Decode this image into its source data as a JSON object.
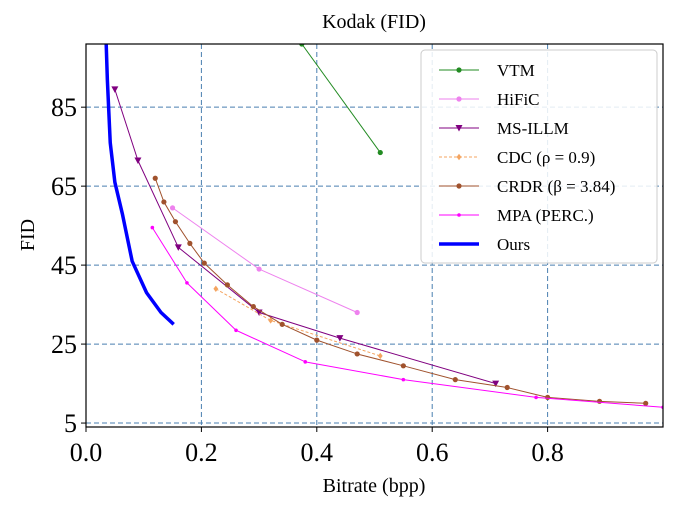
{
  "chart_data": {
    "type": "line",
    "title": "Kodak (FID)",
    "xlabel": "Bitrate (bpp)",
    "ylabel": "FID",
    "xlim": [
      0.0,
      1.0
    ],
    "ylim": [
      4,
      101
    ],
    "xticks": [
      0.0,
      0.2,
      0.4,
      0.6,
      0.8
    ],
    "xtick_labels": [
      "0.0",
      "0.2",
      "0.4",
      "0.6",
      "0.8"
    ],
    "yticks": [
      5,
      25,
      45,
      65,
      85
    ],
    "ytick_labels": [
      "5",
      "25",
      "45",
      "65",
      "85"
    ],
    "grid": true,
    "legend_position": "top-right",
    "series": [
      {
        "name": "VTM",
        "color": "#228b22",
        "marker": "circle",
        "dashed": false,
        "width": 1,
        "x": [
          0.374,
          0.51
        ],
        "y": [
          101,
          73.5
        ]
      },
      {
        "name": "HiFiC",
        "color": "#ee82ee",
        "marker": "circle",
        "dashed": false,
        "width": 1,
        "x": [
          0.15,
          0.3,
          0.47
        ],
        "y": [
          59.5,
          44,
          33
        ]
      },
      {
        "name": "MS-ILLM",
        "color": "#800080",
        "marker": "triangle-down",
        "dashed": false,
        "width": 1,
        "x": [
          0.05,
          0.09,
          0.16,
          0.3,
          0.44,
          0.71
        ],
        "y": [
          89.5,
          71.5,
          49.5,
          33,
          26.5,
          15
        ]
      },
      {
        "name": "CDC (ρ = 0.9)",
        "color": "#f4a460",
        "marker": "diamond",
        "dashed": true,
        "width": 1,
        "x": [
          0.225,
          0.32,
          0.51
        ],
        "y": [
          39,
          31,
          22
        ]
      },
      {
        "name": "CRDR (β = 3.84)",
        "color": "#a0522d",
        "marker": "circle",
        "dashed": false,
        "width": 1,
        "x": [
          0.12,
          0.135,
          0.155,
          0.18,
          0.205,
          0.245,
          0.29,
          0.34,
          0.4,
          0.47,
          0.55,
          0.64,
          0.73,
          0.8,
          0.89,
          0.97
        ],
        "y": [
          67,
          61,
          56,
          50.5,
          45.5,
          40,
          34.5,
          30,
          26,
          22.5,
          19.5,
          16,
          14,
          11.5,
          10.5,
          10
        ]
      },
      {
        "name": "MPA (PERC.)",
        "color": "#ff00ff",
        "marker": "point",
        "dashed": false,
        "width": 1,
        "x": [
          0.115,
          0.175,
          0.26,
          0.38,
          0.55,
          0.78,
          1.0
        ],
        "y": [
          54.5,
          40.5,
          28.5,
          20.5,
          16,
          11.5,
          9
        ]
      },
      {
        "name": "Ours",
        "color": "#0000ff",
        "marker": "none",
        "dashed": false,
        "width": 3.5,
        "x": [
          0.035,
          0.037,
          0.042,
          0.05,
          0.063,
          0.08,
          0.105,
          0.13,
          0.152
        ],
        "y": [
          101,
          92,
          76,
          66,
          58,
          46,
          38,
          33,
          30
        ]
      }
    ]
  }
}
